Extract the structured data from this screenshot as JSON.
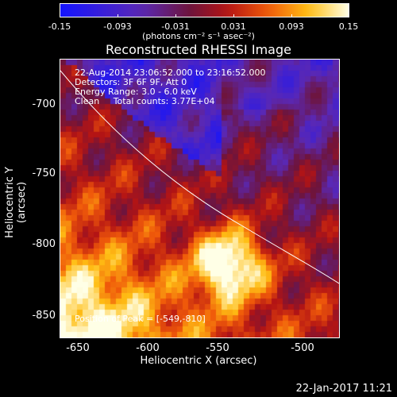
{
  "colorbar": {
    "ticks": [
      "-0.15",
      "-0.093",
      "-0.031",
      "0.031",
      "0.093",
      "0.15"
    ],
    "units": "(photons cm⁻² s⁻¹ asec⁻²)"
  },
  "title": "Reconstructed RHESSI Image",
  "annotations": {
    "line1": "22-Aug-2014 23:06:52.000 to 23:16:52.000",
    "line2": "Detectors: 3F 6F 9F, Att 0",
    "line3": "Energy Range: 3.0 - 6.0 keV",
    "line4": "Clean     Total counts: 3.77E+04",
    "peak": "Position of Peak = [-549,-810]"
  },
  "axes": {
    "xlabel": "Heliocentric X (arcsec)",
    "ylabel": "Heliocentric Y (arcsec)",
    "xticks": [
      "-650",
      "-600",
      "-550",
      "-500"
    ],
    "yticks": [
      "-700",
      "-750",
      "-800",
      "-850"
    ]
  },
  "footer": {
    "date": "22-Jan-2017 11:21"
  },
  "colors": {
    "limb": "#ffffff",
    "peak": "#ffffcc"
  }
}
